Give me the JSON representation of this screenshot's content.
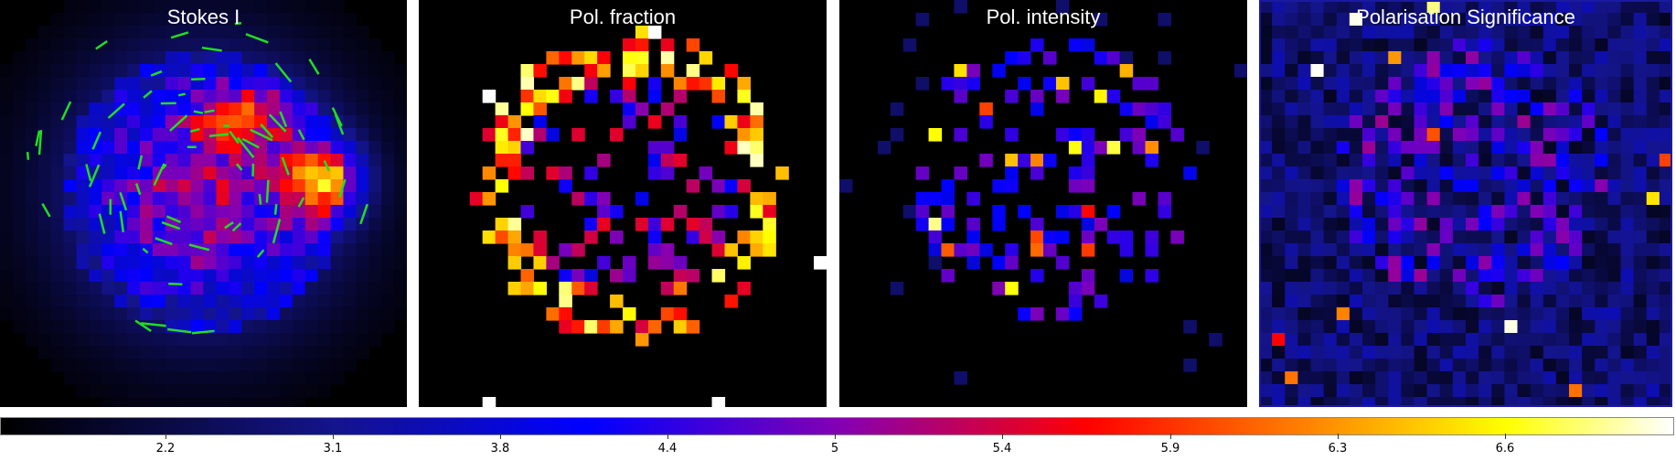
{
  "chart_data": {
    "type": "heatmap",
    "panels": [
      {
        "title": "Stokes I"
      },
      {
        "title": "Pol. fraction"
      },
      {
        "title": "Pol. intensity"
      },
      {
        "title": "Polarisation Significance"
      }
    ],
    "colorbar": {
      "colormap": "black-blue-purple-red-orange-yellow-white",
      "ticks": [
        "2.2",
        "3.1",
        "3.8",
        "4.4",
        "5",
        "5.4",
        "5.9",
        "6.3",
        "6.6"
      ]
    },
    "grid": false,
    "legend": "none"
  },
  "colors": {
    "background": "#000000",
    "vectors": "#22dd22",
    "panel_border": "#1a1aa0"
  }
}
